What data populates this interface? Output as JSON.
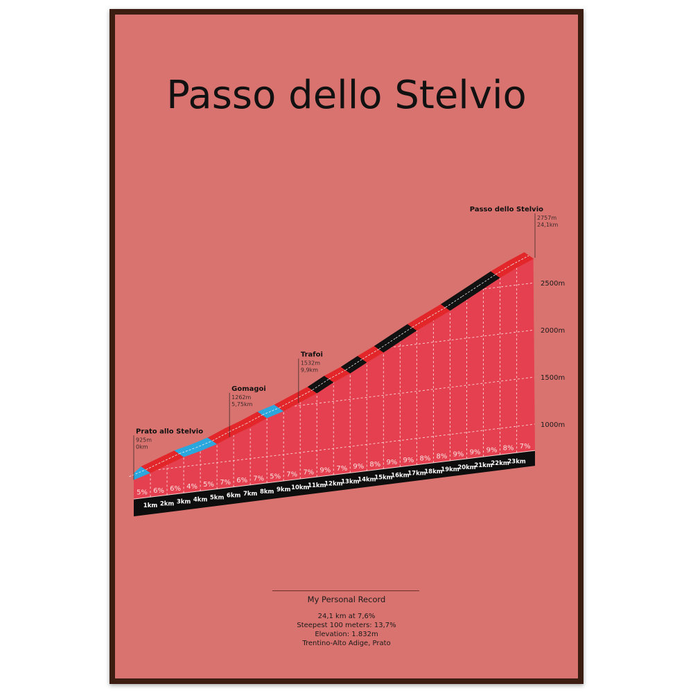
{
  "poster": {
    "title": "Passo dello Stelvio",
    "record_title": "My Personal Record",
    "record_lines": [
      "24,1 km at 7,6%",
      "Steepest 100 meters: 13,7%",
      "Elevation: 1.832m",
      "Trentino-Alto Adige, Prato"
    ]
  },
  "colors": {
    "background": "#d9736f",
    "frame": "#3b1d12",
    "front_face": "#e5404f",
    "band_easy": "#2ba7de",
    "band_medium": "#e3262a",
    "band_hard": "#111111",
    "base": "#0d0d0d"
  },
  "chart_data": {
    "type": "area",
    "xlabel": "",
    "ylabel": "",
    "x_unit": "km",
    "total_distance_km": 24.1,
    "start_elevation_m": 925,
    "end_elevation_m": 2757,
    "grades_percent": [
      5,
      6,
      6,
      4,
      5,
      7,
      6,
      7,
      5,
      7,
      7,
      9,
      7,
      9,
      8,
      9,
      9,
      8,
      8,
      9,
      9,
      9,
      8,
      7
    ],
    "grade_labels": [
      "5%",
      "6%",
      "6%",
      "4%",
      "5%",
      "7%",
      "6%",
      "7%",
      "5%",
      "7%",
      "7%",
      "9%",
      "7%",
      "9%",
      "8%",
      "9%",
      "9%",
      "8%",
      "8%",
      "9%",
      "9%",
      "9%",
      "8%",
      "7%"
    ],
    "km_labels": [
      "1km",
      "2km",
      "3km",
      "4km",
      "5km",
      "6km",
      "7km",
      "8km",
      "9km",
      "10km",
      "11km",
      "12km",
      "13km",
      "14km",
      "15km",
      "16km",
      "17km",
      "18km",
      "19km",
      "20km",
      "21km",
      "22km",
      "23km"
    ],
    "y_ticks": [
      1000,
      1500,
      2000,
      2500
    ],
    "y_tick_labels": [
      "1000m",
      "1500m",
      "2000m",
      "2500m"
    ],
    "grid": true,
    "annotations": [
      {
        "name": "Prato allo Stelvio",
        "elevation": "925m",
        "distance": "0km",
        "km": 0
      },
      {
        "name": "Gomagoi",
        "elevation": "1262m",
        "distance": "5,75km",
        "km": 5.75
      },
      {
        "name": "Trafoi",
        "elevation": "1532m",
        "distance": "9,9km",
        "km": 9.9
      },
      {
        "name": "Passo dello Stelvio",
        "elevation": "2757m",
        "distance": "24,1km",
        "km": 24.1
      }
    ]
  }
}
